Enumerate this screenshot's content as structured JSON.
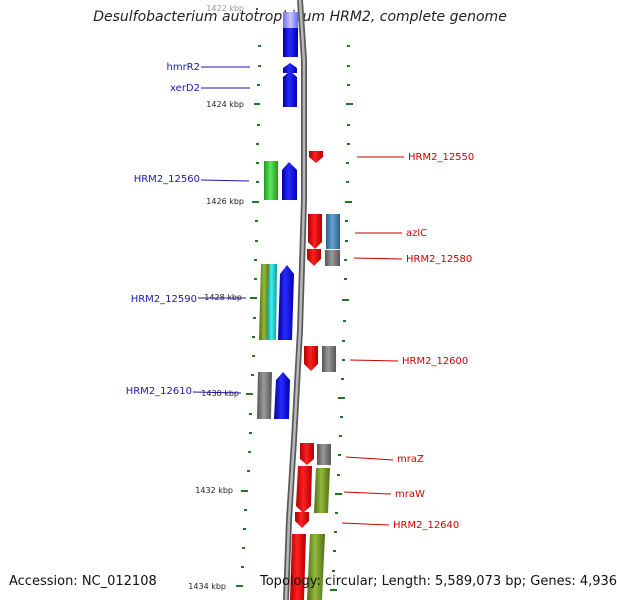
{
  "title": "Desulfobacterium autotrophicum HRM2, complete genome",
  "accession": "Accession: NC_012108",
  "topology": "Topology: circular; Length: 5,589,073 bp; Genes: 4,936",
  "colors": {
    "forward_label": "#1a1aa6",
    "reverse_label": "#cc0000",
    "tick": "#1f7a1f",
    "backbone": "#8a8a8a"
  },
  "kbp_labels": [
    "1422 kbp",
    "1424 kbp",
    "1426 kbp",
    "1428 kbp",
    "1430 kbp",
    "1432 kbp",
    "1434 kbp"
  ],
  "forward_gene_labels": [
    "hmrR2",
    "xerD2",
    "HRM2_12560",
    "HRM2_12590",
    "HRM2_12610"
  ],
  "reverse_gene_labels": [
    "HRM2_12550",
    "azlC",
    "HRM2_12580",
    "HRM2_12600",
    "mraZ",
    "mraW",
    "HRM2_12640"
  ]
}
